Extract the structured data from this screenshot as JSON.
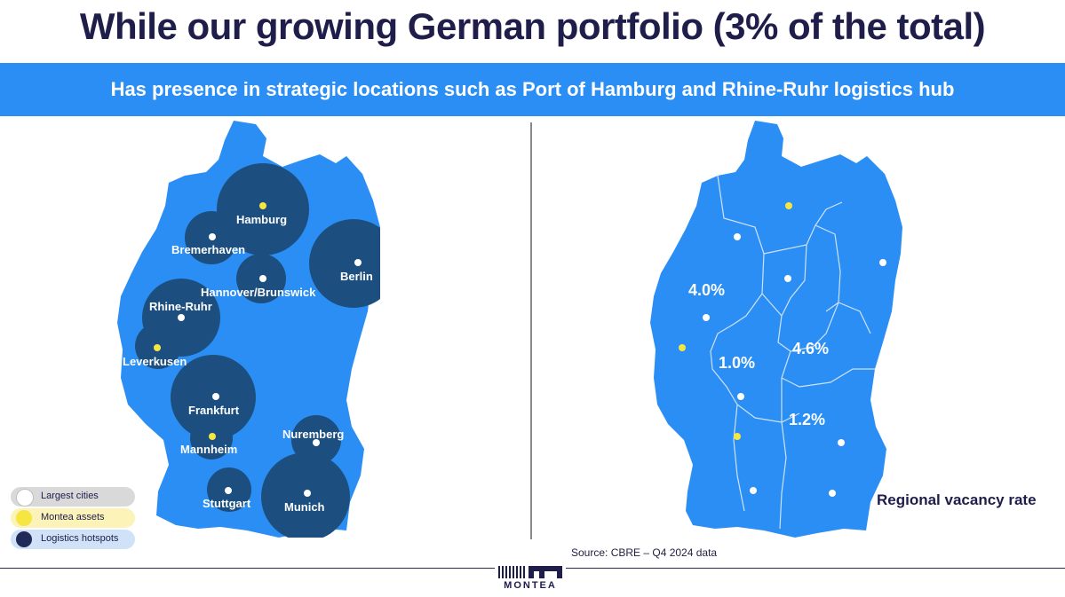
{
  "header": {
    "title": "While our growing German portfolio (3% of the total)",
    "subtitle": "Has presence in strategic locations such as Port of Hamburg and Rhine-Ruhr logistics hub"
  },
  "colors": {
    "land": "#2a8ef5",
    "hotspot": "#1c4f7f",
    "montea": "#f5e642",
    "city": "#ffffff",
    "title": "#1f1d4a"
  },
  "left_map": {
    "hotspots": [
      "Hamburg",
      "Bremerhaven",
      "Hannover/Brunswick",
      "Berlin",
      "Rhine-Ruhr",
      "Leverkusen",
      "Frankfurt",
      "Mannheim",
      "Nuremberg",
      "Stuttgart",
      "Munich"
    ],
    "labels": {
      "hamburg": "Hamburg",
      "bremerhaven": "Bremerhaven",
      "hannover": "Hannover/Brunswick",
      "berlin": "Berlin",
      "rhine_ruhr": "Rhine-Ruhr",
      "leverkusen": "Leverkusen",
      "frankfurt": "Frankfurt",
      "mannheim": "Mannheim",
      "nuremberg": "Nuremberg",
      "stuttgart": "Stuttgart",
      "munich": "Munich"
    }
  },
  "legend": {
    "items": [
      {
        "label": "Largest cities",
        "icon": "white-dot"
      },
      {
        "label": "Montea assets",
        "icon": "yellow-dot"
      },
      {
        "label": "Logistics hotspots",
        "icon": "navy-dot"
      }
    ]
  },
  "right_map": {
    "rates": {
      "north_west": "4.0%",
      "central_west": "1.0%",
      "central_east": "4.6%",
      "south_east": "1.2%"
    },
    "caption": "Regional vacancy rate"
  },
  "footer": {
    "source": "Source: CBRE – Q4 2024 data",
    "logo_text": "MONTEA"
  }
}
